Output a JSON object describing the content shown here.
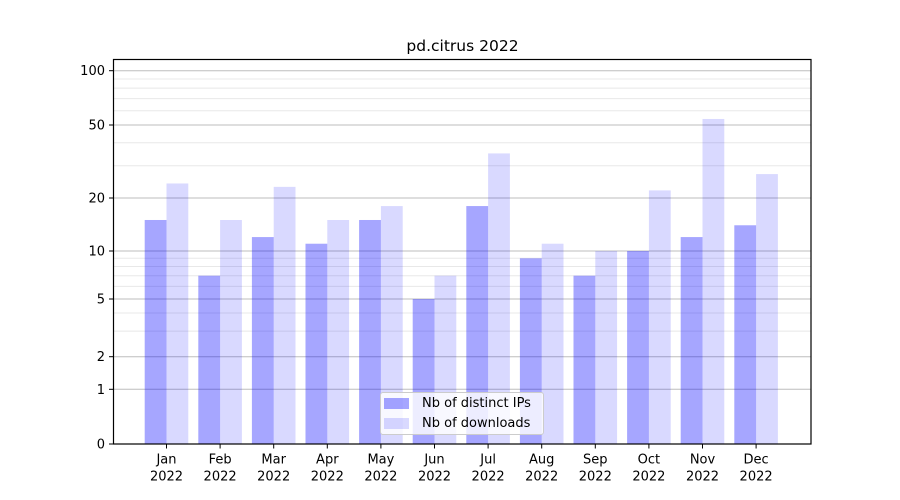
{
  "chart_data": {
    "type": "bar",
    "title": "pd.citrus 2022",
    "categories": [
      "Jan",
      "Feb",
      "Mar",
      "Apr",
      "May",
      "Jun",
      "Jul",
      "Aug",
      "Sep",
      "Oct",
      "Nov",
      "Dec"
    ],
    "category_year": "2022",
    "series": [
      {
        "name": "Nb of distinct IPs",
        "color": "#0000ff",
        "opacity": 0.35,
        "values": [
          15,
          7,
          12,
          11,
          15,
          5,
          18,
          9,
          7,
          10,
          12,
          14
        ]
      },
      {
        "name": "Nb of downloads",
        "color": "#0000ff",
        "opacity": 0.15,
        "values": [
          24,
          15,
          23,
          15,
          18,
          7,
          35,
          11,
          10,
          22,
          54,
          27
        ]
      }
    ],
    "xlabel": "",
    "ylabel": "",
    "yscale": "symlog",
    "ylim": [
      0,
      116
    ],
    "yticks": [
      0,
      1,
      2,
      5,
      10,
      20,
      50,
      100
    ],
    "minor_yticks": [
      3,
      4,
      6,
      7,
      8,
      9,
      30,
      40,
      60,
      70,
      80,
      90
    ],
    "grid": true,
    "legend_position": "lower center"
  }
}
